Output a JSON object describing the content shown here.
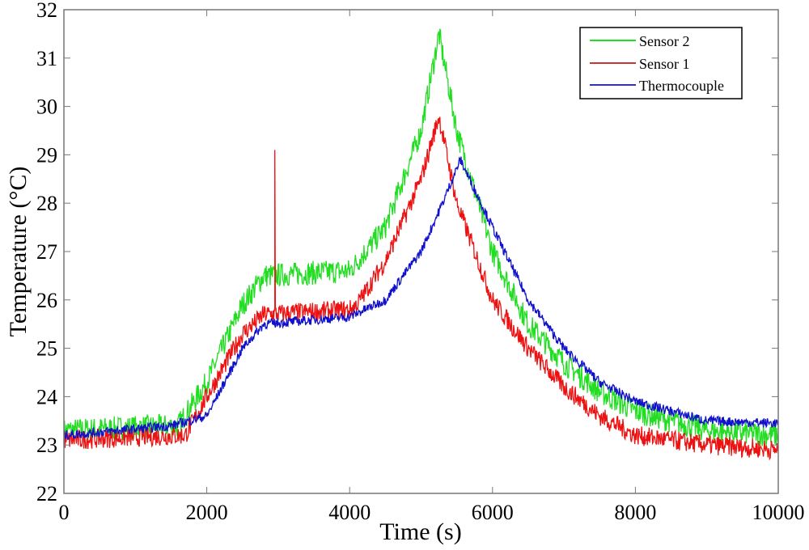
{
  "chart_data": {
    "type": "line",
    "title": "",
    "xlabel": "Time (s)",
    "ylabel": "Temperature (°C)",
    "xlim": [
      0,
      10000
    ],
    "ylim": [
      22,
      32
    ],
    "xticks": [
      0,
      2000,
      4000,
      6000,
      8000,
      10000
    ],
    "yticks": [
      22,
      23,
      24,
      25,
      26,
      27,
      28,
      29,
      30,
      31,
      32
    ],
    "grid": false,
    "legend_position": "top-right",
    "series": [
      {
        "name": "Sensor 2",
        "color": "#22dd22",
        "noise": 0.5,
        "x": [
          0,
          1600,
          2000,
          2500,
          2800,
          4000,
          4500,
          5000,
          5250,
          5500,
          6000,
          6500,
          7000,
          7500,
          8000,
          9000,
          10000
        ],
        "y": [
          23.3,
          23.4,
          24.3,
          25.9,
          26.5,
          26.6,
          27.5,
          29.5,
          31.5,
          29.5,
          27.0,
          25.5,
          24.7,
          24.1,
          23.7,
          23.3,
          23.2
        ]
      },
      {
        "name": "Sensor 1",
        "color": "#ee1111",
        "noise": 0.4,
        "x": [
          0,
          1700,
          2000,
          2500,
          2800,
          4000,
          4100,
          4500,
          5000,
          5250,
          5500,
          6000,
          6500,
          7000,
          7500,
          8000,
          9000,
          10000
        ],
        "y": [
          23.1,
          23.2,
          24.0,
          25.3,
          25.7,
          25.8,
          25.9,
          26.8,
          28.5,
          29.8,
          28.0,
          26.0,
          25.0,
          24.2,
          23.6,
          23.2,
          23.0,
          22.9
        ],
        "spike": {
          "x": 2950,
          "y": 29.1
        }
      },
      {
        "name": "Thermocouple",
        "color": "#1111cc",
        "noise": 0.2,
        "x": [
          0,
          1500,
          2000,
          2500,
          2800,
          4000,
          4500,
          5000,
          5300,
          5550,
          6000,
          6500,
          7000,
          7500,
          8000,
          9000,
          10000
        ],
        "y": [
          23.2,
          23.4,
          23.6,
          25.0,
          25.5,
          25.65,
          26.0,
          27.0,
          28.0,
          28.9,
          27.5,
          26.0,
          25.0,
          24.3,
          23.9,
          23.5,
          23.45
        ]
      }
    ]
  }
}
